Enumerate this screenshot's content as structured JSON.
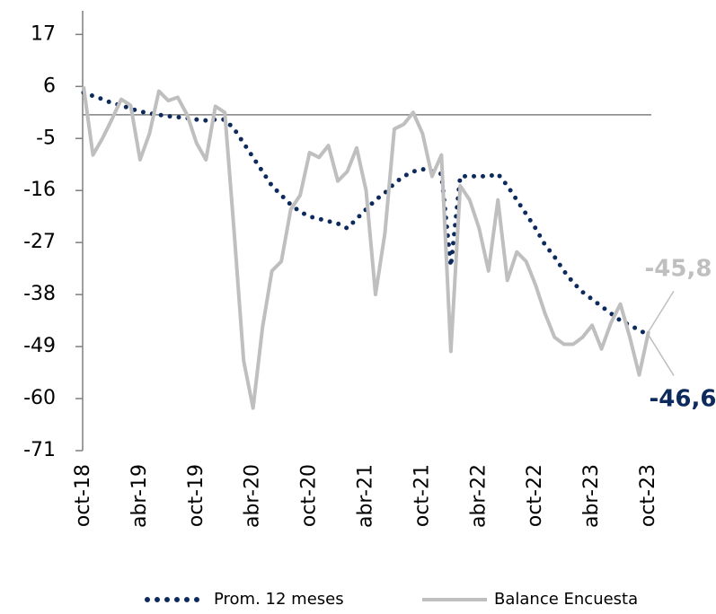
{
  "chart_data": {
    "type": "line",
    "categories": [
      "oct-18",
      null,
      null,
      null,
      null,
      null,
      "abr-19",
      null,
      null,
      null,
      null,
      null,
      "oct-19",
      null,
      null,
      null,
      null,
      null,
      "abr-20",
      null,
      null,
      null,
      null,
      null,
      "oct-20",
      null,
      null,
      null,
      null,
      null,
      "abr-21",
      null,
      null,
      null,
      null,
      null,
      "oct-21",
      null,
      null,
      null,
      null,
      null,
      "abr-22",
      null,
      null,
      null,
      null,
      null,
      "oct-22",
      null,
      null,
      null,
      null,
      null,
      "abr-23",
      null,
      null,
      null,
      null,
      null,
      "oct-23"
    ],
    "series": [
      {
        "name": "Prom. 12 meses",
        "color": "#0d2a5c",
        "style": "dotted",
        "values": [
          4.7,
          4,
          3.3,
          2.5,
          2,
          1.3,
          0.7,
          0.3,
          0,
          -0.3,
          -0.5,
          -0.7,
          -1,
          -1.2,
          -1,
          -1,
          -3,
          -6,
          -9,
          -12,
          -15,
          -17,
          -19,
          -20.5,
          -21.5,
          -22,
          -22.5,
          -23,
          -24,
          -22,
          -20,
          -18,
          -16.5,
          -14.5,
          -13,
          -12,
          -11.5,
          -12,
          -12.5,
          -32,
          -13,
          -13,
          -13,
          -13,
          -12.5,
          -15,
          -18,
          -21,
          -24,
          -27.5,
          -30,
          -33,
          -35.5,
          -37.5,
          -39,
          -40.5,
          -42,
          -43.5,
          -44.5,
          -45.5,
          -46.6
        ],
        "value_labels": [
          null,
          null,
          null,
          null,
          null,
          null,
          null,
          null,
          null,
          null,
          null,
          null,
          null,
          null,
          null,
          null,
          null,
          null,
          null,
          null,
          null,
          null,
          null,
          null,
          null,
          null,
          null,
          null,
          null,
          null,
          null,
          null,
          null,
          null,
          null,
          null,
          null,
          null,
          null,
          null,
          null,
          null,
          null,
          null,
          null,
          null,
          null,
          null,
          null,
          null,
          null,
          null,
          null,
          null,
          null,
          null,
          null,
          null,
          null,
          null,
          "-46,6"
        ]
      },
      {
        "name": "Balance Encuesta",
        "color": "#bfbfbf",
        "style": "solid",
        "values": [
          6,
          -8.5,
          -5,
          -1,
          3.3,
          2,
          -9.5,
          -4,
          5,
          3,
          3.7,
          0,
          -6,
          -9.5,
          1.8,
          0.5,
          -25,
          -52,
          -62,
          -45,
          -33,
          -31,
          -20,
          -17,
          -8,
          -9,
          -6.5,
          -14,
          -12,
          -7,
          -16,
          -38,
          -25,
          -3,
          -2,
          0.5,
          -4,
          -13,
          -8.5,
          -50,
          -15,
          -18,
          -24,
          -33,
          -18,
          -35,
          -29,
          -31,
          -36,
          -42,
          -47,
          -48.5,
          -48.5,
          -47,
          -44.5,
          -49.5,
          -44,
          -40,
          -47,
          -55,
          -45.8
        ],
        "value_labels": [
          null,
          null,
          null,
          null,
          null,
          null,
          null,
          null,
          null,
          null,
          null,
          null,
          null,
          null,
          null,
          null,
          null,
          null,
          null,
          null,
          null,
          null,
          null,
          null,
          null,
          null,
          null,
          null,
          null,
          null,
          null,
          null,
          null,
          null,
          null,
          null,
          null,
          null,
          null,
          null,
          null,
          null,
          null,
          null,
          null,
          null,
          null,
          null,
          null,
          null,
          null,
          null,
          null,
          null,
          null,
          null,
          null,
          null,
          null,
          null,
          "-45,8"
        ]
      }
    ],
    "ylim": [
      -71,
      22
    ],
    "yticks": [
      -71,
      -60,
      -49,
      -38,
      -27,
      -16,
      -5,
      6,
      17
    ],
    "legend": "bottom"
  }
}
